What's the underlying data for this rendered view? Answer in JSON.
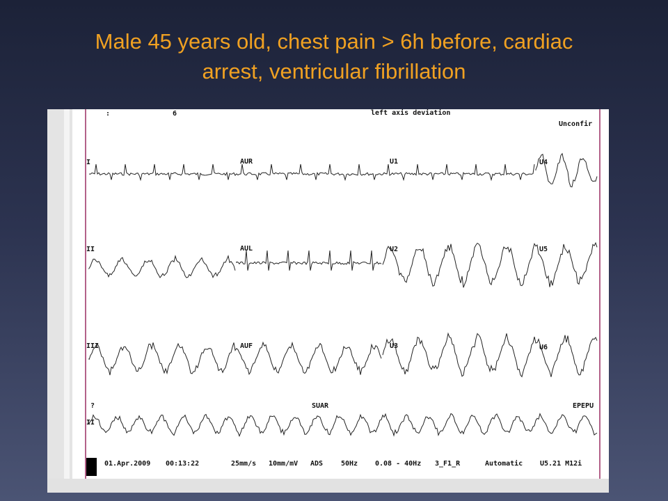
{
  "slide": {
    "title": "Male 45 years old, chest pain > 6h before, cardiac arrest, ventricular fibrillation"
  },
  "ecg": {
    "header": [
      ":",
      "6",
      "left axis deviation",
      "Unconfir"
    ],
    "leads": [
      "I",
      "AUR",
      "U1",
      "U4",
      "II",
      "AUL",
      "U2",
      "U5",
      "III",
      "AUF",
      "U3",
      "U6",
      "?",
      "SUAR",
      "EPEPU",
      "II"
    ],
    "footer": [
      "01.Apr.2009",
      "00:13:22",
      "25mm/s",
      "10mm/mV",
      "ADS",
      "50Hz",
      "0.08 - 40Hz",
      "3_F1_R",
      "Automatic",
      "U5.21 M12i"
    ]
  }
}
